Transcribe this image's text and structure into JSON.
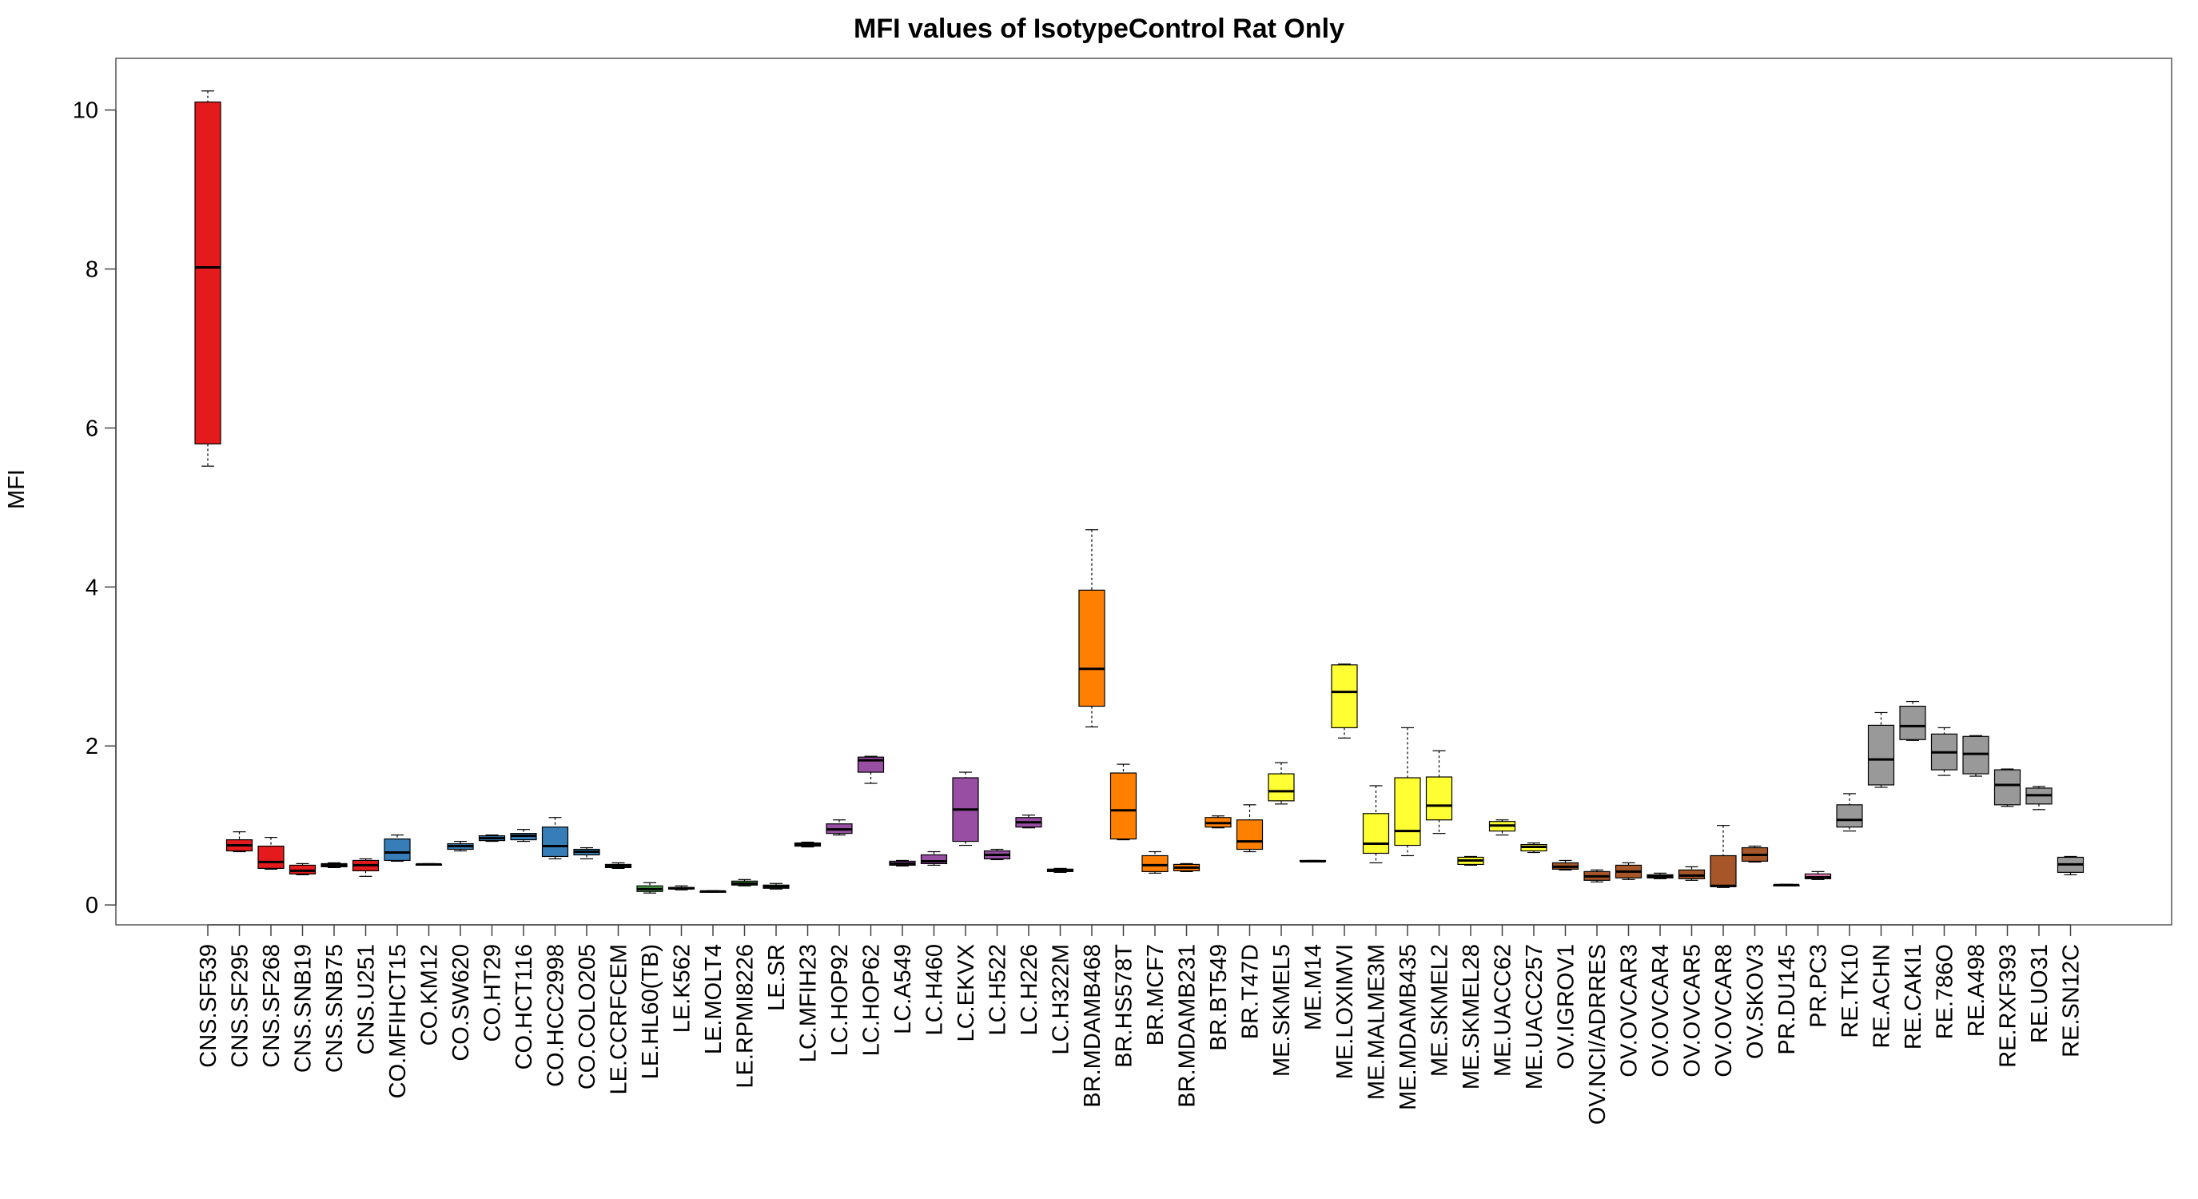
{
  "chart_data": {
    "type": "box",
    "title": "MFI values of IsotypeControl Rat Only",
    "xlabel": "",
    "ylabel": "MFI",
    "ylim": [
      -0.25,
      10.65
    ],
    "yticks": [
      0,
      2,
      4,
      6,
      8,
      10
    ],
    "grid": false,
    "legend": "none",
    "colors": {
      "CNS": "#e41a1c",
      "CO": "#377eb8",
      "LE": "#4daf4a",
      "LC": "#984ea3",
      "BR": "#ff7f00",
      "ME": "#ffff33",
      "OV": "#a65628",
      "PR": "#f781bf",
      "RE": "#999999"
    },
    "boxes": [
      {
        "name": "CNS.SF539",
        "group": "CNS",
        "min": 5.52,
        "q1": 5.8,
        "median": 8.02,
        "q3": 10.1,
        "max": 10.24
      },
      {
        "name": "CNS.SF295",
        "group": "CNS",
        "min": 0.67,
        "q1": 0.68,
        "median": 0.75,
        "q3": 0.82,
        "max": 0.92
      },
      {
        "name": "CNS.SF268",
        "group": "CNS",
        "min": 0.45,
        "q1": 0.46,
        "median": 0.54,
        "q3": 0.74,
        "max": 0.85
      },
      {
        "name": "CNS.SNB19",
        "group": "CNS",
        "min": 0.38,
        "q1": 0.39,
        "median": 0.43,
        "q3": 0.5,
        "max": 0.52
      },
      {
        "name": "CNS.SNB75",
        "group": "CNS",
        "min": 0.47,
        "q1": 0.48,
        "median": 0.5,
        "q3": 0.52,
        "max": 0.53
      },
      {
        "name": "CNS.U251",
        "group": "CNS",
        "min": 0.36,
        "q1": 0.43,
        "median": 0.5,
        "q3": 0.56,
        "max": 0.58
      },
      {
        "name": "CO.MFIHCT15",
        "group": "CO",
        "min": 0.55,
        "q1": 0.56,
        "median": 0.66,
        "q3": 0.83,
        "max": 0.88
      },
      {
        "name": "CO.KM12",
        "group": "CO",
        "min": 0.5,
        "q1": 0.5,
        "median": 0.51,
        "q3": 0.51,
        "max": 0.52
      },
      {
        "name": "CO.SW620",
        "group": "CO",
        "min": 0.68,
        "q1": 0.7,
        "median": 0.74,
        "q3": 0.77,
        "max": 0.8
      },
      {
        "name": "CO.HT29",
        "group": "CO",
        "min": 0.8,
        "q1": 0.81,
        "median": 0.84,
        "q3": 0.87,
        "max": 0.88
      },
      {
        "name": "CO.HCT116",
        "group": "CO",
        "min": 0.8,
        "q1": 0.82,
        "median": 0.87,
        "q3": 0.9,
        "max": 0.95
      },
      {
        "name": "CO.HCC2998",
        "group": "CO",
        "min": 0.58,
        "q1": 0.61,
        "median": 0.74,
        "q3": 0.98,
        "max": 1.1
      },
      {
        "name": "CO.COLO205",
        "group": "CO",
        "min": 0.58,
        "q1": 0.63,
        "median": 0.67,
        "q3": 0.7,
        "max": 0.72
      },
      {
        "name": "LE.CCRFCEM",
        "group": "LE",
        "min": 0.46,
        "q1": 0.47,
        "median": 0.49,
        "q3": 0.51,
        "max": 0.53
      },
      {
        "name": "LE.HL60(TB)",
        "group": "LE",
        "min": 0.15,
        "q1": 0.17,
        "median": 0.2,
        "q3": 0.24,
        "max": 0.28
      },
      {
        "name": "LE.K562",
        "group": "LE",
        "min": 0.19,
        "q1": 0.2,
        "median": 0.21,
        "q3": 0.22,
        "max": 0.24
      },
      {
        "name": "LE.MOLT4",
        "group": "LE",
        "min": 0.16,
        "q1": 0.16,
        "median": 0.17,
        "q3": 0.17,
        "max": 0.18
      },
      {
        "name": "LE.RPMI8226",
        "group": "LE",
        "min": 0.24,
        "q1": 0.25,
        "median": 0.27,
        "q3": 0.3,
        "max": 0.32
      },
      {
        "name": "LE.SR",
        "group": "LE",
        "min": 0.2,
        "q1": 0.21,
        "median": 0.23,
        "q3": 0.25,
        "max": 0.27
      },
      {
        "name": "LC.MFIH23",
        "group": "LC",
        "min": 0.73,
        "q1": 0.74,
        "median": 0.76,
        "q3": 0.78,
        "max": 0.79
      },
      {
        "name": "LC.HOP92",
        "group": "LC",
        "min": 0.88,
        "q1": 0.9,
        "median": 0.95,
        "q3": 1.02,
        "max": 1.07
      },
      {
        "name": "LC.HOP62",
        "group": "LC",
        "min": 1.53,
        "q1": 1.67,
        "median": 1.82,
        "q3": 1.86,
        "max": 1.87
      },
      {
        "name": "LC.A549",
        "group": "LC",
        "min": 0.49,
        "q1": 0.5,
        "median": 0.52,
        "q3": 0.55,
        "max": 0.56
      },
      {
        "name": "LC.H460",
        "group": "LC",
        "min": 0.5,
        "q1": 0.52,
        "median": 0.55,
        "q3": 0.63,
        "max": 0.67
      },
      {
        "name": "LC.EKVX",
        "group": "LC",
        "min": 0.75,
        "q1": 0.8,
        "median": 1.2,
        "q3": 1.6,
        "max": 1.67
      },
      {
        "name": "LC.H522",
        "group": "LC",
        "min": 0.57,
        "q1": 0.58,
        "median": 0.63,
        "q3": 0.68,
        "max": 0.7
      },
      {
        "name": "LC.H226",
        "group": "LC",
        "min": 0.97,
        "q1": 0.98,
        "median": 1.04,
        "q3": 1.1,
        "max": 1.13
      },
      {
        "name": "LC.H322M",
        "group": "LC",
        "min": 0.41,
        "q1": 0.42,
        "median": 0.44,
        "q3": 0.45,
        "max": 0.46
      },
      {
        "name": "BR.MDAMB468",
        "group": "BR",
        "min": 2.24,
        "q1": 2.5,
        "median": 2.97,
        "q3": 3.96,
        "max": 4.72
      },
      {
        "name": "BR.HS578T",
        "group": "BR",
        "min": 0.82,
        "q1": 0.83,
        "median": 1.19,
        "q3": 1.66,
        "max": 1.77
      },
      {
        "name": "BR.MCF7",
        "group": "BR",
        "min": 0.4,
        "q1": 0.42,
        "median": 0.5,
        "q3": 0.62,
        "max": 0.67
      },
      {
        "name": "BR.MDAMB231",
        "group": "BR",
        "min": 0.42,
        "q1": 0.43,
        "median": 0.47,
        "q3": 0.51,
        "max": 0.52
      },
      {
        "name": "BR.BT549",
        "group": "BR",
        "min": 0.97,
        "q1": 0.98,
        "median": 1.03,
        "q3": 1.1,
        "max": 1.12
      },
      {
        "name": "BR.T47D",
        "group": "BR",
        "min": 0.67,
        "q1": 0.7,
        "median": 0.8,
        "q3": 1.07,
        "max": 1.26
      },
      {
        "name": "ME.SKMEL5",
        "group": "ME",
        "min": 1.27,
        "q1": 1.31,
        "median": 1.43,
        "q3": 1.65,
        "max": 1.79
      },
      {
        "name": "ME.M14",
        "group": "ME",
        "min": 0.55,
        "q1": 0.55,
        "median": 0.55,
        "q3": 0.56,
        "max": 0.56
      },
      {
        "name": "ME.LOXIMVI",
        "group": "ME",
        "min": 2.1,
        "q1": 2.23,
        "median": 2.68,
        "q3": 3.02,
        "max": 3.03
      },
      {
        "name": "ME.MALME3M",
        "group": "ME",
        "min": 0.53,
        "q1": 0.65,
        "median": 0.77,
        "q3": 1.15,
        "max": 1.5
      },
      {
        "name": "ME.MDAMB435",
        "group": "ME",
        "min": 0.62,
        "q1": 0.75,
        "median": 0.93,
        "q3": 1.6,
        "max": 2.23
      },
      {
        "name": "ME.SKMEL2",
        "group": "ME",
        "min": 0.9,
        "q1": 1.07,
        "median": 1.25,
        "q3": 1.61,
        "max": 1.94
      },
      {
        "name": "ME.SKMEL28",
        "group": "ME",
        "min": 0.5,
        "q1": 0.51,
        "median": 0.56,
        "q3": 0.6,
        "max": 0.61
      },
      {
        "name": "ME.UACC62",
        "group": "ME",
        "min": 0.88,
        "q1": 0.93,
        "median": 1.0,
        "q3": 1.05,
        "max": 1.07
      },
      {
        "name": "ME.UACC257",
        "group": "ME",
        "min": 0.66,
        "q1": 0.68,
        "median": 0.73,
        "q3": 0.76,
        "max": 0.78
      },
      {
        "name": "OV.IGROV1",
        "group": "OV",
        "min": 0.44,
        "q1": 0.45,
        "median": 0.48,
        "q3": 0.53,
        "max": 0.56
      },
      {
        "name": "OV.NCI/ADRRES",
        "group": "OV",
        "min": 0.29,
        "q1": 0.31,
        "median": 0.36,
        "q3": 0.42,
        "max": 0.44
      },
      {
        "name": "OV.OVCAR3",
        "group": "OV",
        "min": 0.32,
        "q1": 0.34,
        "median": 0.42,
        "q3": 0.5,
        "max": 0.53
      },
      {
        "name": "OV.OVCAR4",
        "group": "OV",
        "min": 0.33,
        "q1": 0.34,
        "median": 0.36,
        "q3": 0.38,
        "max": 0.4
      },
      {
        "name": "OV.OVCAR5",
        "group": "OV",
        "min": 0.31,
        "q1": 0.33,
        "median": 0.37,
        "q3": 0.44,
        "max": 0.48
      },
      {
        "name": "OV.OVCAR8",
        "group": "OV",
        "min": 0.22,
        "q1": 0.23,
        "median": 0.24,
        "q3": 0.62,
        "max": 1.0
      },
      {
        "name": "OV.SKOV3",
        "group": "OV",
        "min": 0.54,
        "q1": 0.55,
        "median": 0.63,
        "q3": 0.72,
        "max": 0.74
      },
      {
        "name": "PR.DU145",
        "group": "PR",
        "min": 0.24,
        "q1": 0.24,
        "median": 0.25,
        "q3": 0.25,
        "max": 0.26
      },
      {
        "name": "PR.PC3",
        "group": "PR",
        "min": 0.32,
        "q1": 0.33,
        "median": 0.35,
        "q3": 0.39,
        "max": 0.42
      },
      {
        "name": "RE.TK10",
        "group": "RE",
        "min": 0.93,
        "q1": 0.98,
        "median": 1.07,
        "q3": 1.26,
        "max": 1.4
      },
      {
        "name": "RE.ACHN",
        "group": "RE",
        "min": 1.48,
        "q1": 1.51,
        "median": 1.83,
        "q3": 2.26,
        "max": 2.42
      },
      {
        "name": "RE.CAKI1",
        "group": "RE",
        "min": 2.07,
        "q1": 2.08,
        "median": 2.25,
        "q3": 2.5,
        "max": 2.56
      },
      {
        "name": "RE.786O",
        "group": "RE",
        "min": 1.63,
        "q1": 1.7,
        "median": 1.92,
        "q3": 2.15,
        "max": 2.23
      },
      {
        "name": "RE.A498",
        "group": "RE",
        "min": 1.62,
        "q1": 1.65,
        "median": 1.9,
        "q3": 2.12,
        "max": 2.13
      },
      {
        "name": "RE.RXF393",
        "group": "RE",
        "min": 1.24,
        "q1": 1.26,
        "median": 1.51,
        "q3": 1.7,
        "max": 1.71
      },
      {
        "name": "RE.UO31",
        "group": "RE",
        "min": 1.2,
        "q1": 1.27,
        "median": 1.38,
        "q3": 1.47,
        "max": 1.49
      },
      {
        "name": "RE.SN12C",
        "group": "RE",
        "min": 0.38,
        "q1": 0.41,
        "median": 0.51,
        "q3": 0.6,
        "max": 0.61
      }
    ]
  }
}
